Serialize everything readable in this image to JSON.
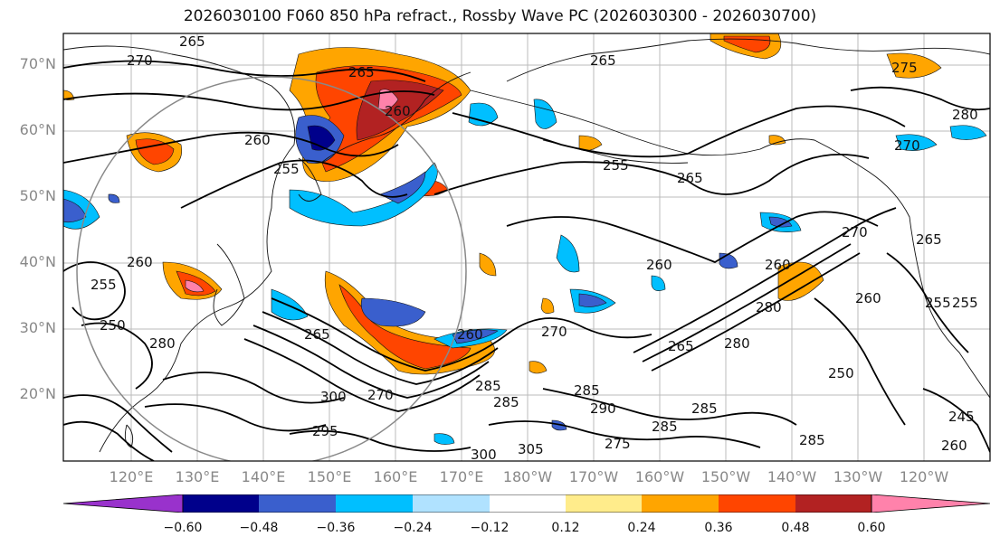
{
  "title": "2026030100 F060 850 hPa refract., Rossby Wave PC (2026030300 - 2026030700)",
  "lat_labels": [
    "70°N",
    "60°N",
    "50°N",
    "40°N",
    "30°N",
    "20°N"
  ],
  "lon_labels": [
    "120°E",
    "130°E",
    "140°E",
    "150°E",
    "160°E",
    "170°E",
    "180°W",
    "170°W",
    "160°W",
    "150°W",
    "140°W",
    "130°W",
    "120°W"
  ],
  "colorbar": {
    "colors": [
      "#9932cc",
      "#00008b",
      "#3a5fcd",
      "#00bfff",
      "#b0e2ff",
      "#ffffff",
      "#ffec8b",
      "#ffa500",
      "#ff4500",
      "#b22222",
      "#ff82ab"
    ],
    "ticks": [
      "−0.60",
      "−0.48",
      "−0.36",
      "−0.24",
      "−0.12",
      "0.12",
      "0.24",
      "0.36",
      "0.48",
      "0.60"
    ]
  },
  "contour_labels": [
    "265",
    "270",
    "265",
    "265",
    "260",
    "260",
    "255",
    "255",
    "265",
    "265",
    "275",
    "280",
    "270",
    "260",
    "260",
    "270",
    "260",
    "270",
    "265",
    "250",
    "255",
    "260",
    "265",
    "280",
    "285",
    "260",
    "255",
    "255",
    "245",
    "250",
    "260",
    "280",
    "285",
    "285",
    "290",
    "285",
    "285",
    "295",
    "300",
    "300",
    "305",
    "275",
    "285",
    "270",
    "280"
  ]
}
